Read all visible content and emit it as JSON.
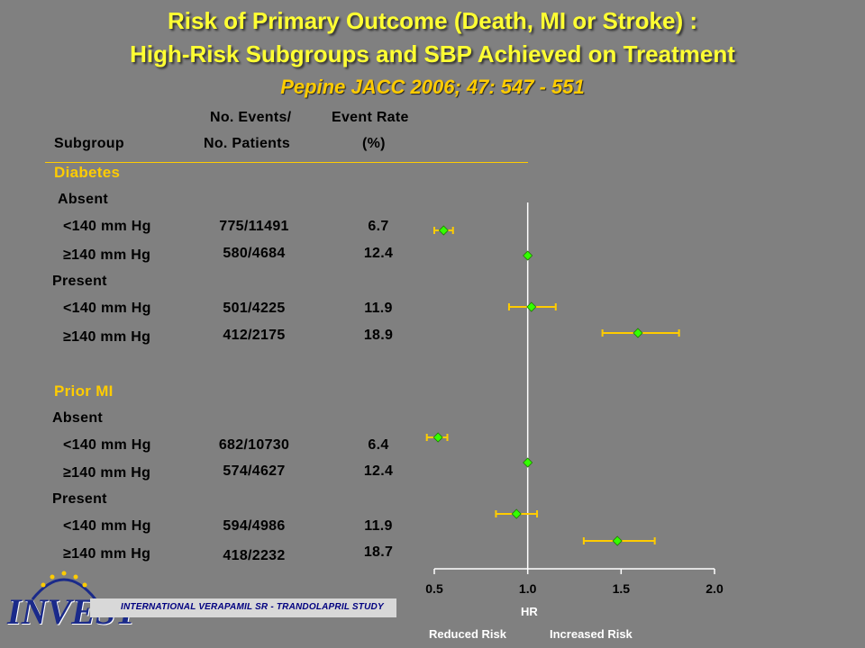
{
  "title": {
    "line1": "Risk of Primary Outcome (Death, MI or Stroke) :",
    "line2": "High-Risk Subgroups and SBP Achieved on Treatment",
    "citation": "Pepine JACC 2006; 47: 547 - 551"
  },
  "headers": {
    "subgroup": "Subgroup",
    "events_line1": "No. Events/",
    "events_line2": "No. Patients",
    "rate_line1": "Event Rate",
    "rate_line2": "(%)"
  },
  "sections": [
    {
      "label": "Diabetes",
      "groups": [
        {
          "label": "Absent",
          "rows": [
            {
              "label": "<140 mm Hg",
              "events": "775/11491",
              "rate": "6.7"
            },
            {
              "label": "≥140 mm Hg",
              "events": "580/4684",
              "rate": "12.4"
            }
          ]
        },
        {
          "label": "Present",
          "rows": [
            {
              "label": "<140 mm Hg",
              "events": "501/4225",
              "rate": "11.9"
            },
            {
              "label": "≥140 mm Hg",
              "events": "412/2175",
              "rate": "18.9"
            }
          ]
        }
      ]
    },
    {
      "label": "Prior MI",
      "groups": [
        {
          "label": "Absent",
          "rows": [
            {
              "label": "<140 mm Hg",
              "events": "682/10730",
              "rate": "6.4"
            },
            {
              "label": "≥140 mm Hg",
              "events": "574/4627",
              "rate": "12.4"
            }
          ]
        },
        {
          "label": "Present",
          "rows": [
            {
              "label": "<140 mm Hg",
              "events": "594/4986",
              "rate": "11.9"
            },
            {
              "label": "≥140 mm Hg",
              "events": "418/2232",
              "rate": "18.7"
            }
          ]
        }
      ]
    }
  ],
  "chart_data": {
    "type": "scatter",
    "xlabel": "HR",
    "xlim": [
      0.5,
      2.0
    ],
    "xticks": [
      "0.5",
      "1.0",
      "1.5",
      "2.0"
    ],
    "reference_line": 1.0,
    "direction_labels": {
      "left": "Reduced Risk",
      "right": "Increased Risk"
    },
    "points": [
      {
        "label": "Diabetes Absent <140 mm Hg",
        "hr": 0.55,
        "lo": 0.5,
        "hi": 0.6
      },
      {
        "label": "Diabetes Absent ≥140 mm Hg",
        "hr": 1.0,
        "lo": 1.0,
        "hi": 1.0
      },
      {
        "label": "Diabetes Present <140 mm Hg",
        "hr": 1.02,
        "lo": 0.9,
        "hi": 1.15
      },
      {
        "label": "Diabetes Present ≥140 mm Hg",
        "hr": 1.59,
        "lo": 1.4,
        "hi": 1.81
      },
      {
        "label": "Prior MI Absent <140 mm Hg",
        "hr": 0.52,
        "lo": 0.46,
        "hi": 0.57
      },
      {
        "label": "Prior MI Absent ≥140 mm Hg",
        "hr": 1.0,
        "lo": 1.0,
        "hi": 1.0
      },
      {
        "label": "Prior MI Present <140 mm Hg",
        "hr": 0.94,
        "lo": 0.83,
        "hi": 1.05
      },
      {
        "label": "Prior MI Present ≥140 mm Hg",
        "hr": 1.48,
        "lo": 1.3,
        "hi": 1.68
      }
    ],
    "colors": {
      "marker": "#33ff00",
      "ci": "#ffcc00",
      "axis": "#ffffff"
    }
  },
  "footer": {
    "study": "INTERNATIONAL VERAPAMIL SR - TRANDOLAPRIL STUDY",
    "logo": "INVEST"
  }
}
